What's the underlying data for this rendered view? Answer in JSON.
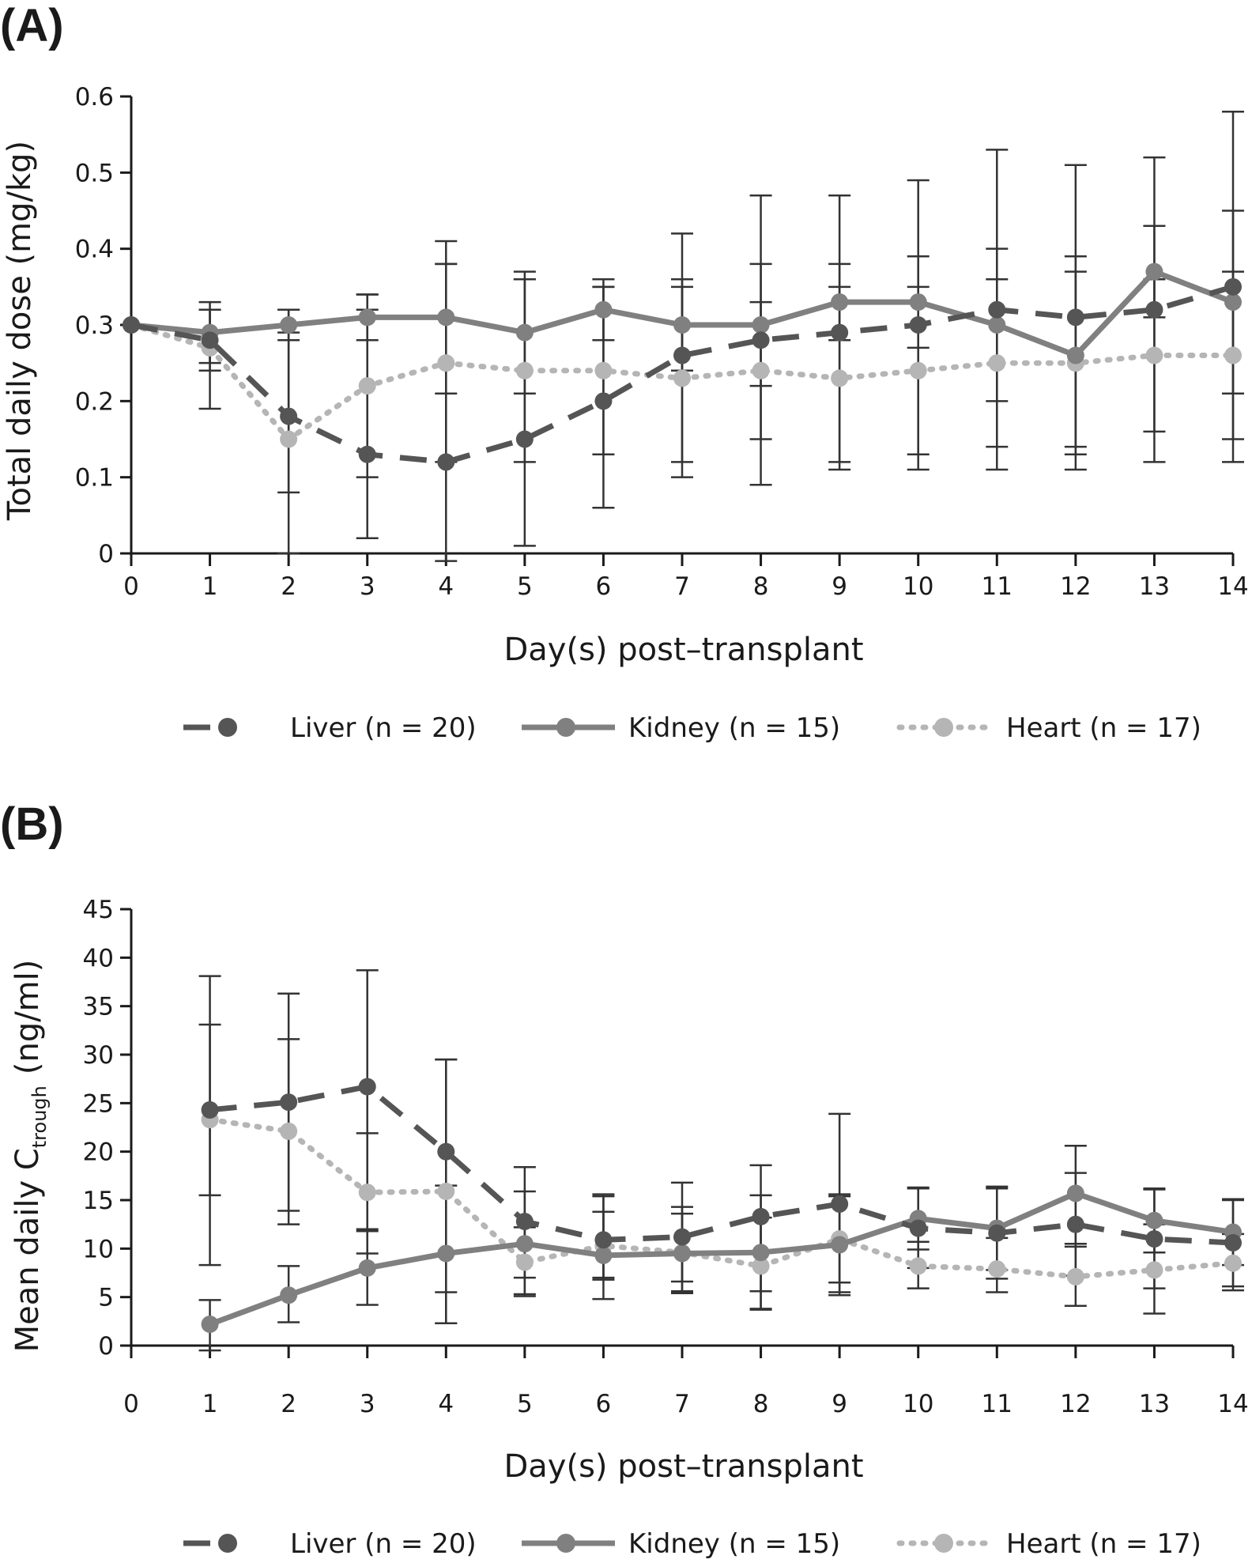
{
  "chart_data": [
    {
      "type": "line",
      "panel_label": "(A)",
      "xlabel": "Day(s) post–transplant",
      "ylabel": "Total daily dose (mg/kg)",
      "xlim": [
        0,
        14
      ],
      "ylim": [
        0,
        0.6
      ],
      "xticks": [
        "0",
        "1",
        "2",
        "3",
        "4",
        "5",
        "6",
        "7",
        "8",
        "9",
        "10",
        "11",
        "12",
        "13",
        "14"
      ],
      "yticks": [
        "0",
        "0.1",
        "0.2",
        "0.3",
        "0.4",
        "0.5",
        "0.6"
      ],
      "grid": false,
      "legend_position": "bottom",
      "series": [
        {
          "name": "Liver (n = 20)",
          "style": "dashed",
          "color": "#555555",
          "x": [
            0,
            1,
            2,
            3,
            4,
            5,
            6,
            7,
            8,
            9,
            10,
            11,
            12,
            13,
            14
          ],
          "y": [
            0.3,
            0.28,
            0.18,
            0.13,
            0.12,
            0.15,
            0.2,
            0.26,
            0.28,
            0.29,
            0.3,
            0.32,
            0.31,
            0.32,
            0.35
          ],
          "err_low": [
            0.3,
            0.19,
            0.0,
            0.02,
            -0.01,
            0.01,
            0.06,
            0.1,
            0.09,
            0.11,
            0.11,
            0.11,
            0.11,
            0.12,
            0.12
          ],
          "err_high": [
            0.3,
            0.33,
            0.32,
            0.34,
            0.41,
            0.37,
            0.35,
            0.42,
            0.47,
            0.47,
            0.49,
            0.53,
            0.51,
            0.52,
            0.58
          ]
        },
        {
          "name": "Kidney (n = 15)",
          "style": "solid",
          "color": "#808080",
          "x": [
            0,
            1,
            2,
            3,
            4,
            5,
            6,
            7,
            8,
            9,
            10,
            11,
            12,
            13,
            14
          ],
          "y": [
            0.3,
            0.29,
            0.3,
            0.31,
            0.31,
            0.29,
            0.32,
            0.3,
            0.3,
            0.33,
            0.33,
            0.3,
            0.26,
            0.37,
            0.33
          ],
          "err_low": [
            0.3,
            0.25,
            0.28,
            0.28,
            0.21,
            0.21,
            0.28,
            0.24,
            0.22,
            0.28,
            0.27,
            0.2,
            0.14,
            0.31,
            0.21
          ],
          "err_high": [
            0.3,
            0.32,
            0.32,
            0.34,
            0.38,
            0.36,
            0.36,
            0.36,
            0.38,
            0.38,
            0.39,
            0.4,
            0.39,
            0.43,
            0.45
          ]
        },
        {
          "name": "Heart (n = 17)",
          "style": "dotted",
          "color": "#b5b5b5",
          "x": [
            0,
            1,
            2,
            3,
            4,
            5,
            6,
            7,
            8,
            9,
            10,
            11,
            12,
            13,
            14
          ],
          "y": [
            0.3,
            0.27,
            0.15,
            0.22,
            0.25,
            0.24,
            0.24,
            0.23,
            0.24,
            0.23,
            0.24,
            0.25,
            0.25,
            0.26,
            0.26
          ],
          "err_low": [
            0.3,
            0.24,
            0.08,
            0.1,
            0.12,
            0.12,
            0.13,
            0.12,
            0.15,
            0.12,
            0.13,
            0.14,
            0.13,
            0.16,
            0.15
          ],
          "err_high": [
            0.3,
            0.32,
            0.29,
            0.32,
            0.38,
            0.36,
            0.35,
            0.35,
            0.33,
            0.35,
            0.35,
            0.36,
            0.37,
            0.36,
            0.37
          ]
        }
      ]
    },
    {
      "type": "line",
      "panel_label": "(B)",
      "xlabel": "Day(s) post–transplant",
      "ylabel_main": "Mean daily C",
      "ylabel_sub": "trough",
      "ylabel_unit": "(ng/ml)",
      "xlim": [
        0,
        14
      ],
      "ylim": [
        0,
        45
      ],
      "xticks": [
        "0",
        "1",
        "2",
        "3",
        "4",
        "5",
        "6",
        "7",
        "8",
        "9",
        "10",
        "11",
        "12",
        "13",
        "14"
      ],
      "yticks": [
        "0",
        "5",
        "10",
        "15",
        "20",
        "25",
        "30",
        "35",
        "40",
        "45"
      ],
      "grid": false,
      "legend_position": "bottom",
      "series": [
        {
          "name": "Liver (n = 20)",
          "style": "dashed",
          "color": "#555555",
          "x": [
            1,
            2,
            3,
            4,
            5,
            6,
            7,
            8,
            9,
            10,
            11,
            12,
            13,
            14
          ],
          "y": [
            24.3,
            25.1,
            26.7,
            20.0,
            12.8,
            10.9,
            11.2,
            13.3,
            14.6,
            12.1,
            11.6,
            12.5,
            11.0,
            10.6
          ],
          "err_low": [
            15.5,
            13.9,
            12.0,
            5.5,
            7.0,
            7.0,
            5.6,
            5.6,
            5.5,
            8.0,
            6.9,
            7.2,
            5.9,
            6.1
          ],
          "err_high": [
            33.1,
            36.3,
            38.7,
            29.5,
            18.4,
            15.6,
            16.8,
            18.6,
            23.9,
            16.2,
            16.2,
            17.8,
            16.1,
            15.1
          ]
        },
        {
          "name": "Kidney (n = 15)",
          "style": "solid",
          "color": "#808080",
          "x": [
            1,
            2,
            3,
            4,
            5,
            6,
            7,
            8,
            9,
            10,
            11,
            12,
            13,
            14
          ],
          "y": [
            2.2,
            5.2,
            8.0,
            9.5,
            10.5,
            9.3,
            9.5,
            9.6,
            10.4,
            13.1,
            12.1,
            15.7,
            12.9,
            11.7
          ],
          "err_low": [
            -0.5,
            2.4,
            4.2,
            2.3,
            5.1,
            4.8,
            5.4,
            3.7,
            5.2,
            9.9,
            7.8,
            10.5,
            9.6,
            8.3
          ],
          "err_high": [
            4.7,
            8.2,
            11.8,
            16.5,
            15.9,
            13.8,
            13.6,
            15.5,
            15.6,
            16.3,
            16.4,
            20.6,
            16.2,
            15.0
          ]
        },
        {
          "name": "Heart (n = 17)",
          "style": "dotted",
          "color": "#b5b5b5",
          "x": [
            1,
            2,
            3,
            4,
            5,
            6,
            7,
            8,
            9,
            10,
            11,
            12,
            13,
            14
          ],
          "y": [
            23.3,
            22.1,
            15.8,
            15.9,
            8.6,
            10.3,
            9.6,
            8.2,
            11.0,
            8.2,
            7.9,
            7.1,
            7.8,
            8.5
          ],
          "err_low": [
            8.3,
            12.5,
            9.5,
            2.3,
            5.3,
            6.8,
            6.6,
            3.8,
            6.5,
            5.9,
            5.5,
            4.1,
            3.3,
            5.7
          ],
          "err_high": [
            38.1,
            31.6,
            21.9,
            29.5,
            12.2,
            15.4,
            14.3,
            13.2,
            15.4,
            10.7,
            11.1,
            10.2,
            12.5,
            11.5
          ]
        }
      ]
    }
  ]
}
